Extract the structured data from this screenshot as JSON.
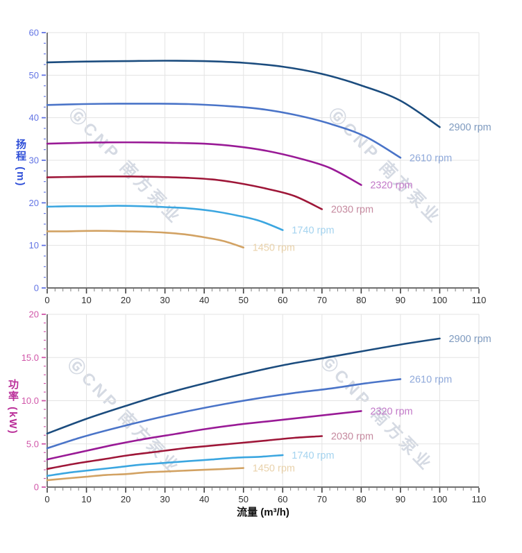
{
  "watermark": {
    "text": "ⒼCNP 南方泵业",
    "color": "#b4bdcd"
  },
  "chart_data": [
    {
      "id": "head-vs-flow",
      "type": "line",
      "title": "",
      "ylabel": "扬程 (m)",
      "xlabel": "",
      "ylabel_color": "#2f4fd8",
      "grid": true,
      "legend_position": "curve-end-labels",
      "x_axis": {
        "min": 0,
        "max": 110,
        "major": 10,
        "minor": 2,
        "tick_labels": [
          "0",
          "10",
          "20",
          "30",
          "40",
          "50",
          "60",
          "70",
          "80",
          "90",
          "100",
          "110"
        ],
        "tick_text_color": "#2e2e2e",
        "tick_color": "#3f3f3f",
        "minor_tick_color": "#8a8a8a"
      },
      "y_axis": {
        "min": 0,
        "max": 60,
        "major": 10,
        "minor": 2.5,
        "tick_labels": [
          "0",
          "10",
          "20",
          "30",
          "40",
          "50",
          "60"
        ],
        "tick_text_color": "#6274e4",
        "tick_color": "#6274e4"
      },
      "series": [
        {
          "name": "2900 rpm",
          "color": "#1b4c7e",
          "label_color": "#7e9abf",
          "points": [
            [
              0,
              53.0
            ],
            [
              10,
              53.2
            ],
            [
              20,
              53.3
            ],
            [
              30,
              53.4
            ],
            [
              40,
              53.3
            ],
            [
              50,
              52.9
            ],
            [
              60,
              52.0
            ],
            [
              70,
              50.3
            ],
            [
              80,
              47.6
            ],
            [
              90,
              44.0
            ],
            [
              100,
              37.8
            ]
          ]
        },
        {
          "name": "2610 rpm",
          "color": "#4a74c8",
          "label_color": "#8fa9da",
          "points": [
            [
              0,
              43.0
            ],
            [
              9,
              43.2
            ],
            [
              18,
              43.3
            ],
            [
              27,
              43.3
            ],
            [
              36,
              43.2
            ],
            [
              45,
              42.8
            ],
            [
              54,
              42.1
            ],
            [
              63,
              40.7
            ],
            [
              72,
              38.6
            ],
            [
              81,
              35.6
            ],
            [
              90,
              30.6
            ]
          ]
        },
        {
          "name": "2320 rpm",
          "color": "#991a96",
          "label_color": "#c279c8",
          "points": [
            [
              0,
              33.9
            ],
            [
              8,
              34.1
            ],
            [
              16,
              34.2
            ],
            [
              24,
              34.2
            ],
            [
              32,
              34.1
            ],
            [
              40,
              33.9
            ],
            [
              48,
              33.3
            ],
            [
              56,
              32.2
            ],
            [
              64,
              30.5
            ],
            [
              72,
              28.2
            ],
            [
              80,
              24.2
            ]
          ]
        },
        {
          "name": "2030 rpm",
          "color": "#9e1638",
          "label_color": "#c68ba0",
          "points": [
            [
              0,
              26.0
            ],
            [
              7,
              26.1
            ],
            [
              14,
              26.2
            ],
            [
              21,
              26.2
            ],
            [
              28,
              26.1
            ],
            [
              35,
              25.9
            ],
            [
              42,
              25.5
            ],
            [
              49,
              24.6
            ],
            [
              56,
              23.3
            ],
            [
              63,
              21.6
            ],
            [
              70,
              18.5
            ]
          ]
        },
        {
          "name": "1740 rpm",
          "color": "#3ba6e0",
          "label_color": "#a4d3ef",
          "points": [
            [
              0,
              19.1
            ],
            [
              6,
              19.2
            ],
            [
              12,
              19.2
            ],
            [
              18,
              19.3
            ],
            [
              24,
              19.2
            ],
            [
              30,
              19.0
            ],
            [
              36,
              18.7
            ],
            [
              42,
              18.1
            ],
            [
              48,
              17.1
            ],
            [
              54,
              15.8
            ],
            [
              60,
              13.6
            ]
          ]
        },
        {
          "name": "1450 rpm",
          "color": "#d2a263",
          "label_color": "#e9d2ab",
          "points": [
            [
              0,
              13.3
            ],
            [
              5,
              13.3
            ],
            [
              10,
              13.4
            ],
            [
              15,
              13.4
            ],
            [
              20,
              13.3
            ],
            [
              25,
              13.2
            ],
            [
              30,
              13.0
            ],
            [
              35,
              12.6
            ],
            [
              40,
              11.9
            ],
            [
              45,
              11.0
            ],
            [
              50,
              9.5
            ]
          ]
        }
      ]
    },
    {
      "id": "power-vs-flow",
      "type": "line",
      "title": "",
      "ylabel": "功率 (kW)",
      "xlabel": "流量 (m³/h)",
      "ylabel_color": "#ba2f99",
      "grid": true,
      "legend_position": "curve-end-labels",
      "x_axis": {
        "min": 0,
        "max": 110,
        "major": 10,
        "minor": 2,
        "tick_labels": [
          "0",
          "10",
          "20",
          "30",
          "40",
          "50",
          "60",
          "70",
          "80",
          "90",
          "100",
          "110"
        ],
        "tick_text_color": "#2e2e2e",
        "tick_color": "#3f3f3f",
        "minor_tick_color": "#8a8a8a"
      },
      "y_axis": {
        "min": 0,
        "max": 20,
        "major": 5,
        "minor": 1,
        "tick_labels": [
          "0",
          "5.0",
          "10.0",
          "15.0",
          "20"
        ],
        "tick_text_color": "#d055a8",
        "tick_color": "#d055a8"
      },
      "series": [
        {
          "name": "2900 rpm",
          "color": "#1b4c7e",
          "label_color": "#7e9abf",
          "points": [
            [
              0,
              6.2
            ],
            [
              10,
              7.9
            ],
            [
              20,
              9.4
            ],
            [
              30,
              10.8
            ],
            [
              40,
              12.0
            ],
            [
              50,
              13.1
            ],
            [
              60,
              14.1
            ],
            [
              70,
              14.9
            ],
            [
              80,
              15.7
            ],
            [
              90,
              16.5
            ],
            [
              100,
              17.2
            ]
          ]
        },
        {
          "name": "2610 rpm",
          "color": "#4a74c8",
          "label_color": "#8fa9da",
          "points": [
            [
              0,
              4.5
            ],
            [
              9,
              5.8
            ],
            [
              18,
              6.9
            ],
            [
              27,
              7.9
            ],
            [
              36,
              8.8
            ],
            [
              45,
              9.6
            ],
            [
              54,
              10.3
            ],
            [
              63,
              10.9
            ],
            [
              72,
              11.4
            ],
            [
              81,
              12.0
            ],
            [
              90,
              12.5
            ]
          ]
        },
        {
          "name": "2320 rpm",
          "color": "#991a96",
          "label_color": "#c279c8",
          "points": [
            [
              0,
              3.2
            ],
            [
              8,
              4.0
            ],
            [
              16,
              4.8
            ],
            [
              24,
              5.5
            ],
            [
              32,
              6.1
            ],
            [
              40,
              6.7
            ],
            [
              48,
              7.2
            ],
            [
              56,
              7.6
            ],
            [
              64,
              8.0
            ],
            [
              72,
              8.4
            ],
            [
              80,
              8.8
            ]
          ]
        },
        {
          "name": "2030 rpm",
          "color": "#9e1638",
          "label_color": "#c68ba0",
          "points": [
            [
              0,
              2.1
            ],
            [
              7,
              2.7
            ],
            [
              14,
              3.2
            ],
            [
              21,
              3.7
            ],
            [
              28,
              4.1
            ],
            [
              35,
              4.5
            ],
            [
              42,
              4.8
            ],
            [
              49,
              5.1
            ],
            [
              56,
              5.4
            ],
            [
              63,
              5.7
            ],
            [
              70,
              5.9
            ]
          ]
        },
        {
          "name": "1740 rpm",
          "color": "#3ba6e0",
          "label_color": "#a4d3ef",
          "points": [
            [
              0,
              1.3
            ],
            [
              6,
              1.7
            ],
            [
              12,
              2.0
            ],
            [
              18,
              2.3
            ],
            [
              24,
              2.6
            ],
            [
              30,
              2.8
            ],
            [
              36,
              3.0
            ],
            [
              42,
              3.2
            ],
            [
              48,
              3.4
            ],
            [
              54,
              3.5
            ],
            [
              60,
              3.7
            ]
          ]
        },
        {
          "name": "1450 rpm",
          "color": "#d2a263",
          "label_color": "#e9d2ab",
          "points": [
            [
              0,
              0.8
            ],
            [
              5,
              1.0
            ],
            [
              10,
              1.2
            ],
            [
              15,
              1.4
            ],
            [
              20,
              1.5
            ],
            [
              25,
              1.7
            ],
            [
              30,
              1.8
            ],
            [
              35,
              1.9
            ],
            [
              40,
              2.0
            ],
            [
              45,
              2.1
            ],
            [
              50,
              2.2
            ]
          ]
        }
      ]
    }
  ]
}
